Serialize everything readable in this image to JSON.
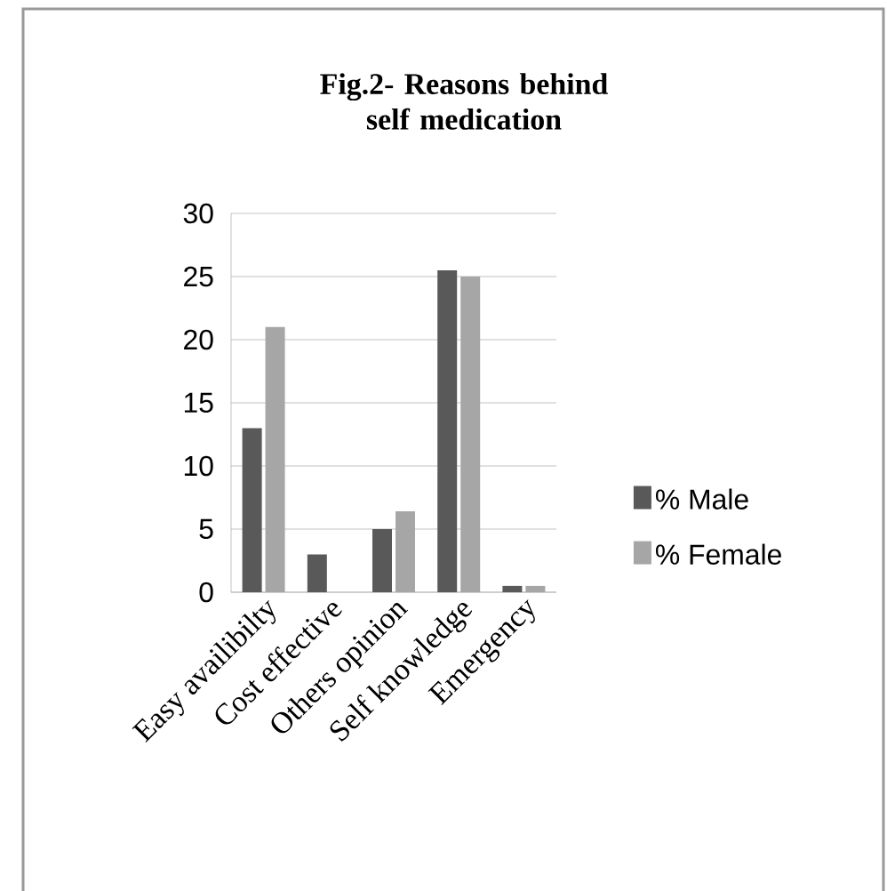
{
  "chart_data": {
    "type": "bar",
    "title": "Fig.2- Reasons behind self medication",
    "categories": [
      "Easy availibilty",
      "Cost effective",
      "Others opinion",
      "Self knowledge",
      "Emergency"
    ],
    "series": [
      {
        "name": "% Male",
        "color": "#595959",
        "values": [
          13,
          3,
          5,
          25.5,
          0.5
        ]
      },
      {
        "name": "% Female",
        "color": "#a6a6a6",
        "values": [
          21,
          0,
          6.4,
          25,
          0.5
        ]
      }
    ],
    "ylim": [
      0,
      30
    ],
    "yticks": [
      0,
      5,
      10,
      15,
      20,
      25,
      30
    ],
    "grid": "y",
    "legend": "right"
  }
}
